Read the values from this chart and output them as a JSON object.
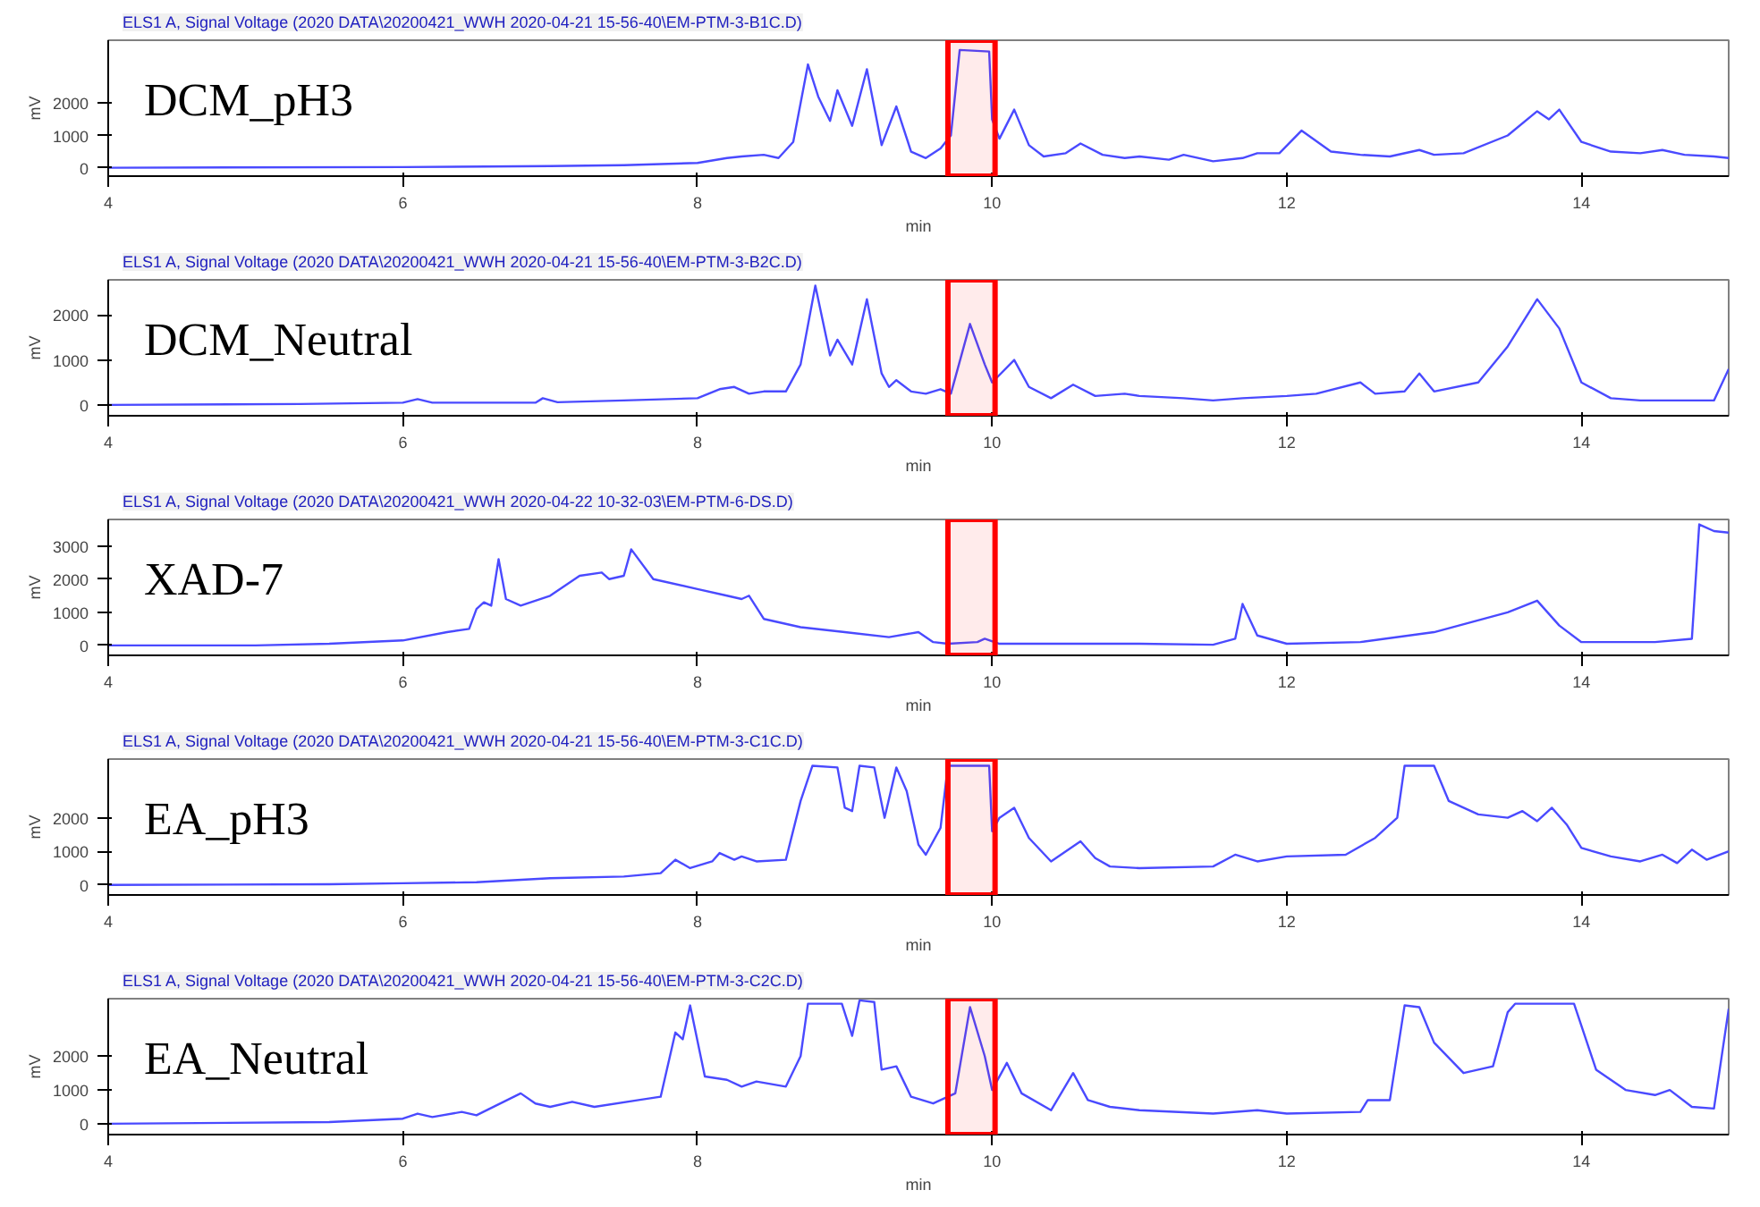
{
  "chart_data": [
    {
      "type": "line",
      "title": "ELS1 A, Signal Voltage (2020 DATA\\20200421_WWH 2020-04-21 15-56-40\\EM-PTM-3-B1C.D)",
      "annotations": [
        "DCM_pH3"
      ],
      "xlabel": "min",
      "ylabel": "mV",
      "xlim": [
        4,
        15
      ],
      "ylim": [
        -260,
        3950
      ],
      "xticks": [
        4,
        6,
        8,
        10,
        12,
        14
      ],
      "yticks": [
        0,
        1000,
        2000
      ],
      "color": "#4a4aff",
      "bands": [
        {
          "axis": "x",
          "from": 9.7,
          "to": 10.02,
          "color": "#ff0000"
        }
      ],
      "x": [
        4.0,
        6.0,
        7.0,
        7.5,
        8.0,
        8.2,
        8.3,
        8.45,
        8.55,
        8.65,
        8.75,
        8.82,
        8.9,
        8.95,
        9.05,
        9.15,
        9.25,
        9.35,
        9.45,
        9.55,
        9.65,
        9.72,
        9.78,
        9.98,
        10.0,
        10.05,
        10.15,
        10.25,
        10.35,
        10.5,
        10.6,
        10.75,
        10.9,
        11.0,
        11.2,
        11.3,
        11.5,
        11.7,
        11.8,
        11.95,
        12.1,
        12.3,
        12.5,
        12.7,
        12.9,
        13.0,
        13.2,
        13.5,
        13.7,
        13.78,
        13.85,
        14.0,
        14.2,
        14.4,
        14.55,
        14.7,
        14.9,
        15.0
      ],
      "values": [
        0,
        20,
        50,
        80,
        150,
        300,
        350,
        400,
        300,
        800,
        3200,
        2200,
        1450,
        2400,
        1300,
        3050,
        700,
        1900,
        500,
        300,
        600,
        1000,
        3650,
        3600,
        1500,
        900,
        1800,
        700,
        350,
        450,
        750,
        400,
        300,
        350,
        250,
        400,
        200,
        300,
        450,
        450,
        1150,
        500,
        400,
        350,
        550,
        400,
        450,
        1000,
        1750,
        1500,
        1800,
        800,
        500,
        450,
        550,
        400,
        350,
        300
      ]
    },
    {
      "type": "line",
      "title": "ELS1 A, Signal Voltage (2020 DATA\\20200421_WWH 2020-04-21 15-56-40\\EM-PTM-3-B2C.D)",
      "annotations": [
        "DCM_Neutral"
      ],
      "xlabel": "min",
      "ylabel": "mV",
      "xlim": [
        4,
        15
      ],
      "ylim": [
        -240,
        2780
      ],
      "xticks": [
        4,
        6,
        8,
        10,
        12,
        14
      ],
      "yticks": [
        0,
        1000,
        2000
      ],
      "color": "#4a4aff",
      "bands": [
        {
          "axis": "x",
          "from": 9.7,
          "to": 10.02,
          "color": "#ff0000"
        }
      ],
      "x": [
        4.0,
        5.3,
        6.0,
        6.1,
        6.2,
        6.9,
        6.95,
        7.05,
        7.5,
        8.0,
        8.15,
        8.25,
        8.35,
        8.45,
        8.6,
        8.7,
        8.8,
        8.9,
        8.95,
        9.05,
        9.15,
        9.25,
        9.3,
        9.35,
        9.45,
        9.55,
        9.65,
        9.72,
        9.85,
        9.95,
        10.0,
        10.15,
        10.25,
        10.4,
        10.55,
        10.7,
        10.9,
        11.0,
        11.3,
        11.5,
        11.7,
        12.0,
        12.2,
        12.5,
        12.6,
        12.8,
        12.9,
        13.0,
        13.3,
        13.5,
        13.7,
        13.85,
        14.0,
        14.2,
        14.4,
        14.9,
        15.0
      ],
      "values": [
        0,
        20,
        50,
        130,
        50,
        50,
        150,
        60,
        100,
        150,
        350,
        400,
        250,
        300,
        300,
        900,
        2650,
        1100,
        1450,
        900,
        2350,
        700,
        400,
        550,
        300,
        250,
        350,
        250,
        1800,
        900,
        500,
        1000,
        400,
        150,
        450,
        200,
        250,
        200,
        150,
        100,
        150,
        200,
        250,
        500,
        250,
        300,
        700,
        300,
        500,
        1300,
        2350,
        1700,
        500,
        150,
        100,
        100,
        800
      ]
    },
    {
      "type": "line",
      "title": "ELS1 A, Signal Voltage (2020 DATA\\20200421_WWH 2020-04-22 10-32-03\\EM-PTM-6-DS.D)",
      "annotations": [
        "XAD-7"
      ],
      "xlabel": "min",
      "ylabel": "mV",
      "xlim": [
        4,
        15
      ],
      "ylim": [
        -300,
        3800
      ],
      "xticks": [
        4,
        6,
        8,
        10,
        12,
        14
      ],
      "yticks": [
        0,
        1000,
        2000,
        3000
      ],
      "color": "#4a4aff",
      "bands": [
        {
          "axis": "x",
          "from": 9.7,
          "to": 10.02,
          "color": "#ff0000"
        }
      ],
      "x": [
        4.0,
        5.0,
        5.5,
        6.0,
        6.3,
        6.45,
        6.5,
        6.55,
        6.6,
        6.65,
        6.7,
        6.8,
        7.0,
        7.2,
        7.35,
        7.4,
        7.5,
        7.55,
        7.7,
        8.0,
        8.2,
        8.3,
        8.35,
        8.45,
        8.7,
        9.0,
        9.3,
        9.5,
        9.6,
        9.7,
        9.9,
        9.95,
        10.05,
        11.0,
        11.5,
        11.65,
        11.7,
        11.8,
        12.0,
        12.5,
        13.0,
        13.5,
        13.7,
        13.85,
        14.0,
        14.5,
        14.75,
        14.8,
        14.9,
        15.0
      ],
      "values": [
        0,
        0,
        50,
        150,
        400,
        500,
        1100,
        1300,
        1200,
        2600,
        1400,
        1200,
        1500,
        2100,
        2200,
        2000,
        2100,
        2900,
        2000,
        1700,
        1500,
        1400,
        1500,
        800,
        550,
        400,
        250,
        400,
        100,
        50,
        100,
        200,
        50,
        50,
        20,
        200,
        1250,
        300,
        50,
        100,
        400,
        1000,
        1350,
        600,
        100,
        100,
        200,
        3650,
        3450,
        3400
      ]
    },
    {
      "type": "line",
      "title": "ELS1 A, Signal Voltage (2020 DATA\\20200421_WWH 2020-04-21 15-56-40\\EM-PTM-3-C1C.D)",
      "annotations": [
        "EA_pH3"
      ],
      "xlabel": "min",
      "ylabel": "mV",
      "xlim": [
        4,
        15
      ],
      "ylim": [
        -300,
        3750
      ],
      "xticks": [
        4,
        6,
        8,
        10,
        12,
        14
      ],
      "yticks": [
        0,
        1000,
        2000
      ],
      "color": "#4a4aff",
      "bands": [
        {
          "axis": "x",
          "from": 9.7,
          "to": 10.02,
          "color": "#ff0000"
        }
      ],
      "x": [
        4.0,
        5.5,
        6.0,
        6.5,
        7.0,
        7.5,
        7.75,
        7.85,
        7.95,
        8.1,
        8.15,
        8.25,
        8.3,
        8.4,
        8.6,
        8.7,
        8.78,
        8.95,
        9.0,
        9.05,
        9.1,
        9.2,
        9.27,
        9.35,
        9.42,
        9.5,
        9.55,
        9.65,
        9.7,
        9.98,
        10.0,
        10.05,
        10.15,
        10.25,
        10.4,
        10.6,
        10.7,
        10.8,
        11.0,
        11.5,
        11.65,
        11.8,
        12.0,
        12.4,
        12.6,
        12.75,
        12.8,
        13.0,
        13.1,
        13.3,
        13.5,
        13.6,
        13.7,
        13.8,
        13.9,
        14.0,
        14.2,
        14.4,
        14.55,
        14.65,
        14.75,
        14.85,
        15.0
      ],
      "values": [
        0,
        20,
        50,
        80,
        200,
        250,
        350,
        750,
        500,
        700,
        950,
        750,
        850,
        700,
        750,
        2500,
        3550,
        3500,
        2300,
        2200,
        3550,
        3500,
        2000,
        3500,
        2800,
        1200,
        900,
        1700,
        3550,
        3550,
        1600,
        2000,
        2300,
        1400,
        700,
        1300,
        800,
        550,
        500,
        550,
        900,
        700,
        850,
        900,
        1400,
        2000,
        3550,
        3550,
        2500,
        2100,
        2000,
        2200,
        1900,
        2300,
        1800,
        1100,
        850,
        700,
        900,
        650,
        1050,
        750,
        1000
      ]
    },
    {
      "type": "line",
      "title": "ELS1 A, Signal Voltage (2020 DATA\\20200421_WWH 2020-04-21 15-56-40\\EM-PTM-3-C2C.D)",
      "annotations": [
        "EA_Neutral"
      ],
      "xlabel": "min",
      "ylabel": "mV",
      "xlim": [
        4,
        15
      ],
      "ylim": [
        -320,
        3700
      ],
      "xticks": [
        4,
        6,
        8,
        10,
        12,
        14
      ],
      "yticks": [
        0,
        1000,
        2000
      ],
      "color": "#4a4aff",
      "bands": [
        {
          "axis": "x",
          "from": 9.7,
          "to": 10.02,
          "color": "#ff0000"
        }
      ],
      "x": [
        4.0,
        5.5,
        6.0,
        6.1,
        6.2,
        6.4,
        6.5,
        6.8,
        6.9,
        7.0,
        7.15,
        7.3,
        7.6,
        7.75,
        7.85,
        7.9,
        7.95,
        8.05,
        8.2,
        8.3,
        8.4,
        8.6,
        8.7,
        8.75,
        8.98,
        9.05,
        9.1,
        9.2,
        9.25,
        9.35,
        9.45,
        9.6,
        9.75,
        9.85,
        9.95,
        10.0,
        10.1,
        10.2,
        10.4,
        10.55,
        10.65,
        10.8,
        11.0,
        11.5,
        11.8,
        12.0,
        12.5,
        12.55,
        12.7,
        12.8,
        12.9,
        13.0,
        13.2,
        13.4,
        13.5,
        13.55,
        13.95,
        14.1,
        14.3,
        14.5,
        14.6,
        14.75,
        14.9,
        15.0
      ],
      "values": [
        0,
        50,
        150,
        300,
        200,
        350,
        250,
        900,
        600,
        500,
        650,
        500,
        700,
        800,
        2700,
        2500,
        3500,
        1400,
        1300,
        1100,
        1250,
        1100,
        2000,
        3550,
        3550,
        2600,
        3650,
        3600,
        1600,
        1700,
        800,
        600,
        900,
        3450,
        2000,
        1000,
        1800,
        900,
        400,
        1500,
        700,
        500,
        400,
        300,
        400,
        300,
        350,
        700,
        700,
        3500,
        3450,
        2400,
        1500,
        1700,
        3300,
        3550,
        3550,
        1600,
        1000,
        850,
        1000,
        500,
        450,
        3400
      ]
    }
  ]
}
